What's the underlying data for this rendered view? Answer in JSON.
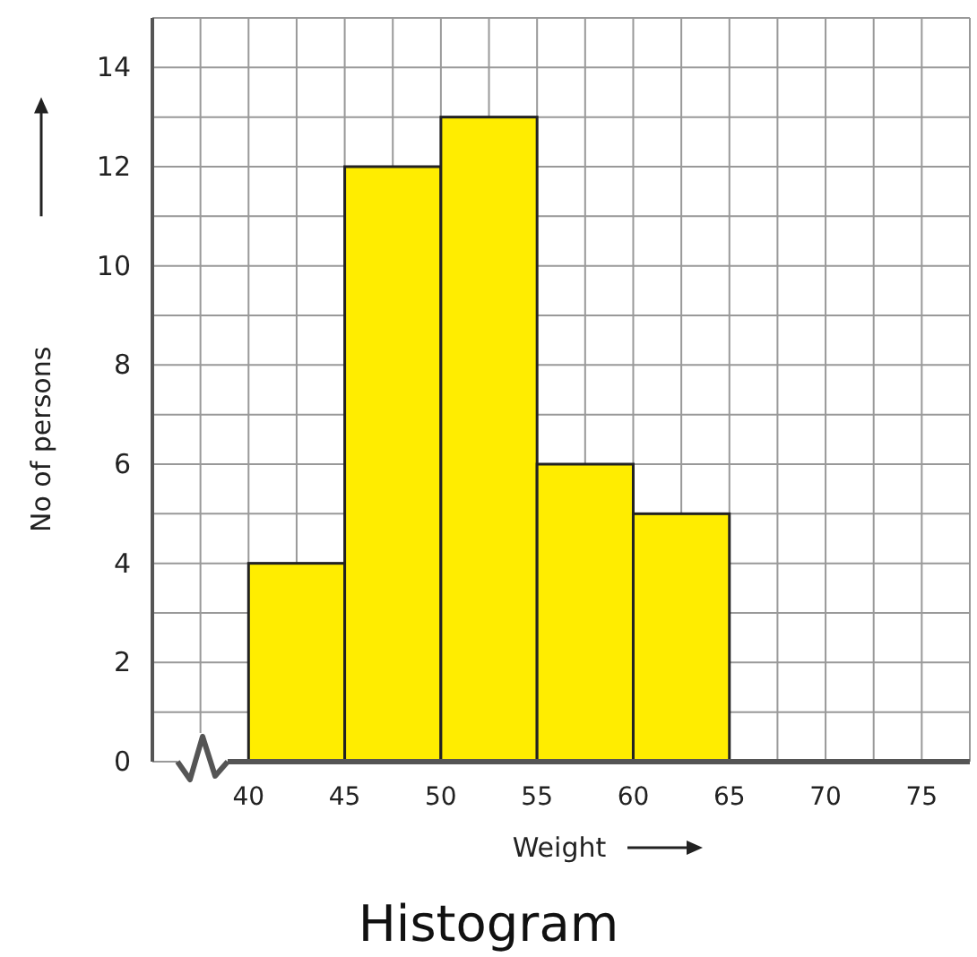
{
  "chart_data": {
    "type": "histogram",
    "title": "Histogram",
    "xlabel": "Weight",
    "ylabel": "No of persons",
    "bins": [
      40,
      45,
      50,
      55,
      60,
      65
    ],
    "values": [
      4,
      12,
      13,
      6,
      5
    ],
    "color": "#ffed00",
    "xlim": [
      35,
      77.5
    ],
    "ylim": [
      0,
      15
    ],
    "xticks": [
      40,
      45,
      50,
      55,
      60,
      65,
      70,
      75
    ],
    "yticks": [
      0,
      2,
      4,
      6,
      8,
      10,
      12,
      14
    ],
    "grid": true
  }
}
